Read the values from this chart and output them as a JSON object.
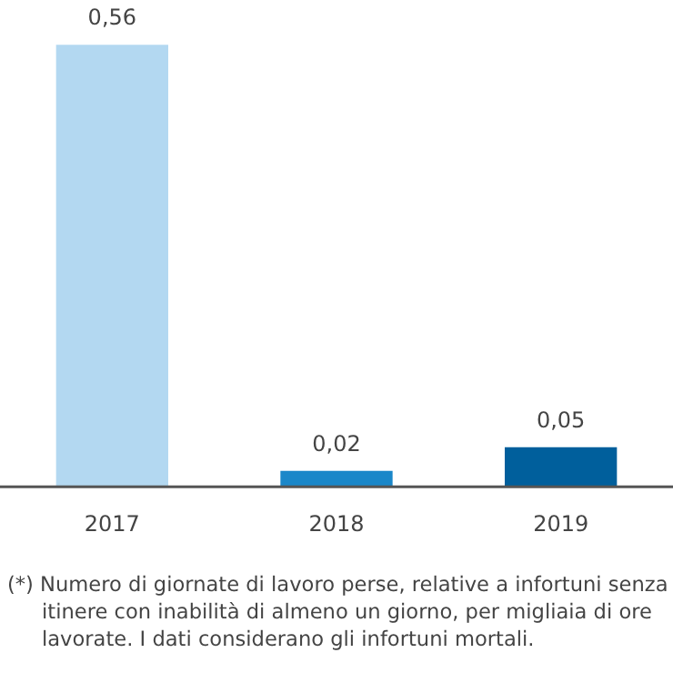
{
  "chart_data": {
    "type": "bar",
    "categories": [
      "2017",
      "2018",
      "2019"
    ],
    "values": [
      0.56,
      0.02,
      0.05
    ],
    "colors": [
      "#b3d8f1",
      "#1a87c9",
      "#005f9c"
    ],
    "value_labels": [
      "0,56",
      "0,02",
      "0,05"
    ],
    "grid": false,
    "legend": false,
    "annotations": [
      "(*) Numero di giornate di lavoro perse, relative a infortuni senza itinere con inabilità di almeno un giorno, per migliaia di ore lavorate. I dati considerano gli infortuni mortali."
    ]
  }
}
